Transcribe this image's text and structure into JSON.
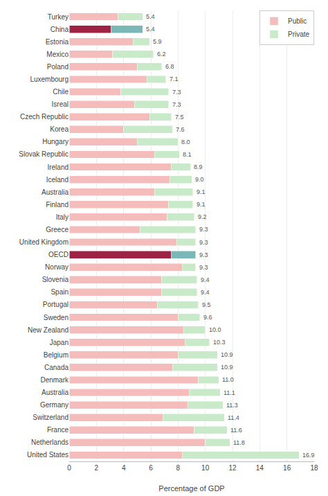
{
  "chart_data": {
    "type": "bar",
    "orientation": "horizontal",
    "stacked": true,
    "categories": [
      "Turkey",
      "China",
      "Estonia",
      "Mexico",
      "Poland",
      "Luxembourg",
      "Chile",
      "Isreal",
      "Czech Republic",
      "Korea",
      "Hungary",
      "Slovak Republic",
      "Ireland",
      "Iceland",
      "Australia",
      "Finland",
      "Italy",
      "Greece",
      "United Kingdom",
      "OECD",
      "Norway",
      "Slovenia",
      "Spain",
      "Portugal",
      "Sweden",
      "New Zealand",
      "Japan",
      "Belgium",
      "Canada",
      "Denmark",
      "Australia",
      "Germany",
      "Switzerland",
      "France",
      "Netherlands",
      "United States"
    ],
    "series": [
      {
        "name": "Public",
        "color": "#f5bcbc",
        "colors": [
          "#f5bcbc",
          "#9e2244",
          "#f5bcbc",
          "#f5bcbc",
          "#f5bcbc",
          "#f5bcbc",
          "#f5bcbc",
          "#f5bcbc",
          "#f5bcbc",
          "#f5bcbc",
          "#f5bcbc",
          "#f5bcbc",
          "#f5bcbc",
          "#f5bcbc",
          "#f5bcbc",
          "#f5bcbc",
          "#f5bcbc",
          "#f5bcbc",
          "#f5bcbc",
          "#9e2244",
          "#f5bcbc",
          "#f5bcbc",
          "#f5bcbc",
          "#f5bcbc",
          "#f5bcbc",
          "#f5bcbc",
          "#f5bcbc",
          "#f5bcbc",
          "#f5bcbc",
          "#f5bcbc",
          "#f5bcbc",
          "#f5bcbc",
          "#f5bcbc",
          "#f5bcbc",
          "#f5bcbc",
          "#f5bcbc"
        ],
        "values": [
          3.6,
          3.1,
          4.7,
          3.2,
          5.0,
          5.7,
          3.8,
          4.8,
          5.9,
          4.0,
          5.0,
          6.3,
          7.5,
          7.4,
          6.3,
          7.3,
          7.2,
          5.2,
          7.9,
          7.5,
          8.3,
          6.8,
          6.8,
          6.5,
          8.0,
          8.4,
          8.5,
          8.0,
          7.6,
          9.5,
          8.8,
          8.7,
          6.9,
          9.2,
          10.0,
          8.3
        ]
      },
      {
        "name": "Private",
        "color": "#c8eac8",
        "colors": [
          "#c8eac8",
          "#7ab8b8",
          "#c8eac8",
          "#c8eac8",
          "#c8eac8",
          "#c8eac8",
          "#c8eac8",
          "#c8eac8",
          "#c8eac8",
          "#c8eac8",
          "#c8eac8",
          "#c8eac8",
          "#c8eac8",
          "#c8eac8",
          "#c8eac8",
          "#c8eac8",
          "#c8eac8",
          "#c8eac8",
          "#c8eac8",
          "#7ab8b8",
          "#c8eac8",
          "#c8eac8",
          "#c8eac8",
          "#c8eac8",
          "#c8eac8",
          "#c8eac8",
          "#c8eac8",
          "#c8eac8",
          "#c8eac8",
          "#c8eac8",
          "#c8eac8",
          "#c8eac8",
          "#c8eac8",
          "#c8eac8",
          "#c8eac8",
          "#c8eac8"
        ],
        "values": [
          1.8,
          2.3,
          1.2,
          3.0,
          1.8,
          1.4,
          3.5,
          2.5,
          1.6,
          3.6,
          3.0,
          1.8,
          1.4,
          1.6,
          2.8,
          1.8,
          2.0,
          4.1,
          1.4,
          1.8,
          1.0,
          2.6,
          2.6,
          3.0,
          1.6,
          1.6,
          1.8,
          2.9,
          3.3,
          1.5,
          2.3,
          2.6,
          4.5,
          2.4,
          1.8,
          8.6
        ]
      }
    ],
    "totals": [
      5.4,
      5.4,
      5.9,
      6.2,
      6.8,
      7.1,
      7.3,
      7.3,
      7.5,
      7.6,
      8.0,
      8.1,
      8.9,
      9.0,
      9.1,
      9.1,
      9.2,
      9.3,
      9.3,
      9.3,
      9.3,
      9.4,
      9.4,
      9.5,
      9.6,
      10.0,
      10.3,
      10.9,
      10.9,
      11.0,
      11.1,
      11.3,
      11.4,
      11.6,
      11.8,
      16.9
    ],
    "total_labels": [
      "5.4",
      "5.4",
      "5.9",
      "6.2",
      "6.8",
      "7.1",
      "7.3",
      "7.3",
      "7.5",
      "7.6",
      "8.0",
      "8.1",
      "8.9",
      "9.0",
      "9.1",
      "9.1",
      "9.2",
      "9.3",
      "9.3",
      "9.3",
      "9.3",
      "9.4",
      "9.4",
      "9.5",
      "9.6",
      "10.0",
      "10.3",
      "10.9",
      "10.9",
      "11.0",
      "11.1",
      "11.3",
      "11.4",
      "11.6",
      "11.8",
      "16.9"
    ],
    "data_labels": true,
    "xlabel": "Percentage of GDP",
    "xlim": [
      0,
      18
    ],
    "xticks": [
      0,
      2,
      4,
      6,
      8,
      10,
      12,
      14,
      16,
      18
    ],
    "grid": true,
    "legend": "upper right"
  }
}
